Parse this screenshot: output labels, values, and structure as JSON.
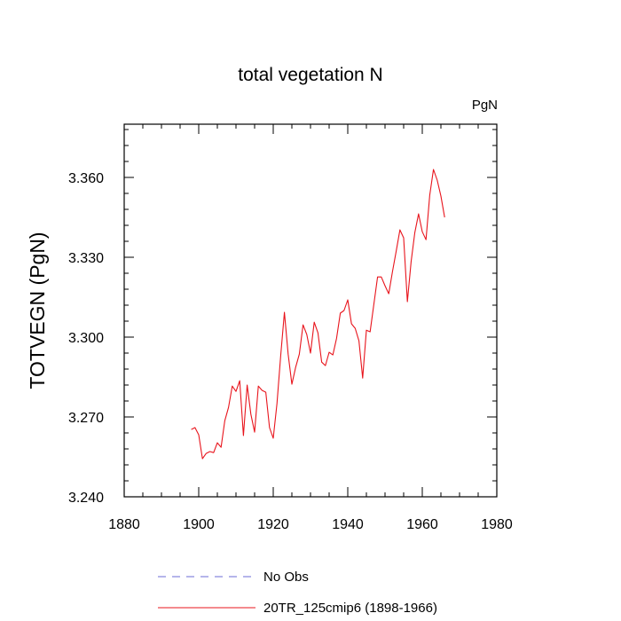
{
  "chart_data": {
    "type": "line",
    "title": "total vegetation N",
    "units_label": "PgN",
    "xlabel": "",
    "ylabel": "TOTVEGN  (PgN)",
    "xlim": [
      1880,
      1980
    ],
    "ylim": [
      3.24,
      3.38
    ],
    "x_ticks": [
      1880,
      1900,
      1920,
      1940,
      1960,
      1980
    ],
    "x_tick_labels": [
      "1880",
      "1900",
      "1920",
      "1940",
      "1960",
      "1980"
    ],
    "y_ticks": [
      3.24,
      3.27,
      3.3,
      3.33,
      3.36
    ],
    "y_tick_labels": [
      "3.240",
      "3.270",
      "3.300",
      "3.330",
      "3.360"
    ],
    "grid": false,
    "legend_position": "bottom",
    "series": [
      {
        "name": "No Obs",
        "color": "#6b6bd6",
        "style": "dashed",
        "x": [],
        "values": []
      },
      {
        "name": "20TR_125cmip6 (1898-1966)",
        "color": "#e8141c",
        "style": "solid",
        "x": [
          1898,
          1899,
          1900,
          1901,
          1902,
          1903,
          1904,
          1905,
          1906,
          1907,
          1908,
          1909,
          1910,
          1911,
          1912,
          1913,
          1914,
          1915,
          1916,
          1917,
          1918,
          1919,
          1920,
          1921,
          1922,
          1923,
          1924,
          1925,
          1926,
          1927,
          1928,
          1929,
          1930,
          1931,
          1932,
          1933,
          1934,
          1935,
          1936,
          1937,
          1938,
          1939,
          1940,
          1941,
          1942,
          1943,
          1944,
          1945,
          1946,
          1947,
          1948,
          1949,
          1950,
          1951,
          1952,
          1953,
          1954,
          1955,
          1956,
          1957,
          1958,
          1959,
          1960,
          1961,
          1962,
          1963,
          1964,
          1965,
          1966
        ],
        "values": [
          3.2653,
          3.266,
          3.2633,
          3.2543,
          3.2563,
          3.257,
          3.2566,
          3.2603,
          3.2586,
          3.2686,
          3.2736,
          3.2816,
          3.2796,
          3.2836,
          3.263,
          3.282,
          3.271,
          3.2643,
          3.2816,
          3.28,
          3.2793,
          3.266,
          3.262,
          3.275,
          3.293,
          3.3093,
          3.2936,
          3.2823,
          3.2886,
          3.2936,
          3.3046,
          3.301,
          3.294,
          3.3056,
          3.3016,
          3.2906,
          3.2893,
          3.2943,
          3.2933,
          3.2996,
          3.309,
          3.31,
          3.314,
          3.305,
          3.3033,
          3.2986,
          3.2846,
          3.3026,
          3.302,
          3.3123,
          3.3226,
          3.3226,
          3.3193,
          3.3163,
          3.3246,
          3.3323,
          3.3403,
          3.3373,
          3.3133,
          3.3283,
          3.3393,
          3.3463,
          3.3396,
          3.3366,
          3.3533,
          3.363,
          3.359,
          3.353,
          3.345
        ]
      }
    ]
  }
}
